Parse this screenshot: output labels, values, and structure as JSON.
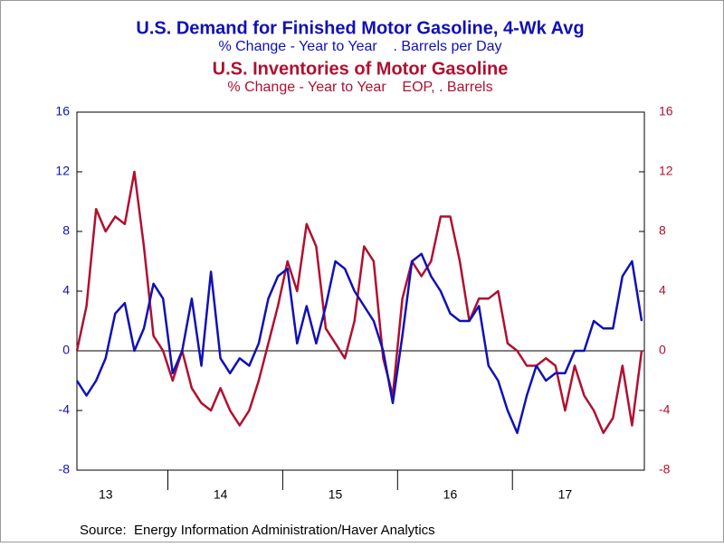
{
  "chart_data": {
    "type": "line",
    "series": [
      {
        "name": "U.S. Demand for Finished Motor Gasoline, 4-Wk Avg",
        "unit": "% Change - Year to Year    . Barrels per Day",
        "color": "#1010b8",
        "axis": "y",
        "values": [
          -2,
          -3,
          -2,
          -0.5,
          2.5,
          3.2,
          0,
          1.5,
          4.5,
          3.5,
          -1.5,
          0,
          3.5,
          -1,
          5.3,
          -0.5,
          -1.5,
          -0.5,
          -1,
          0.5,
          3.5,
          5,
          5.5,
          0.5,
          3,
          0.5,
          3,
          6,
          5.5,
          4,
          3,
          2,
          0,
          -3.5,
          1,
          6,
          6.5,
          5,
          4,
          2.5,
          2,
          2,
          3,
          -1,
          -2,
          -4,
          -5.5,
          -3,
          -1,
          -2,
          -1.5,
          -1.5,
          0,
          0,
          2,
          1.5,
          1.5,
          5,
          6,
          2
        ]
      },
      {
        "name": "U.S. Inventories of Motor Gasoline",
        "unit": "% Change - Year to Year    EOP, . Barrels",
        "color": "#b01030",
        "axis": "y2",
        "values": [
          0,
          3,
          9.5,
          8,
          9,
          8.5,
          12,
          7,
          1,
          0,
          -2,
          0,
          -2.5,
          -3.5,
          -4,
          -2.5,
          -4,
          -5,
          -4,
          -2,
          0.5,
          3,
          6,
          4,
          8.5,
          7,
          1.5,
          0.5,
          -0.5,
          2,
          7,
          6,
          -0.5,
          -3,
          3.5,
          6,
          5,
          6,
          9,
          9,
          6,
          2,
          3.5,
          3.5,
          4,
          0.5,
          0,
          -1,
          -1,
          -0.5,
          -1,
          -4,
          -1,
          -3,
          -4,
          -5.5,
          -4.5,
          -1,
          -5,
          0
        ]
      }
    ],
    "categories": [
      null,
      null,
      null,
      "13",
      null,
      null,
      null,
      null,
      null,
      null,
      null,
      null,
      null,
      null,
      null,
      "14",
      null,
      null,
      null,
      null,
      null,
      null,
      null,
      null,
      null,
      null,
      null,
      "15",
      null,
      null,
      null,
      null,
      null,
      null,
      null,
      null,
      null,
      null,
      null,
      "16",
      null,
      null,
      null,
      null,
      null,
      null,
      null,
      null,
      null,
      null,
      null,
      "17",
      null,
      null,
      null,
      null,
      null,
      null,
      null,
      null
    ],
    "ylim": [
      -8,
      16
    ],
    "yticks": [
      -8,
      -4,
      0,
      4,
      8,
      12,
      16
    ],
    "y2lim": [
      -8,
      16
    ],
    "y2ticks": [
      -8,
      -4,
      0,
      4,
      8,
      12,
      16
    ],
    "source": "Source:  Energy Information Administration/Haver Analytics"
  }
}
